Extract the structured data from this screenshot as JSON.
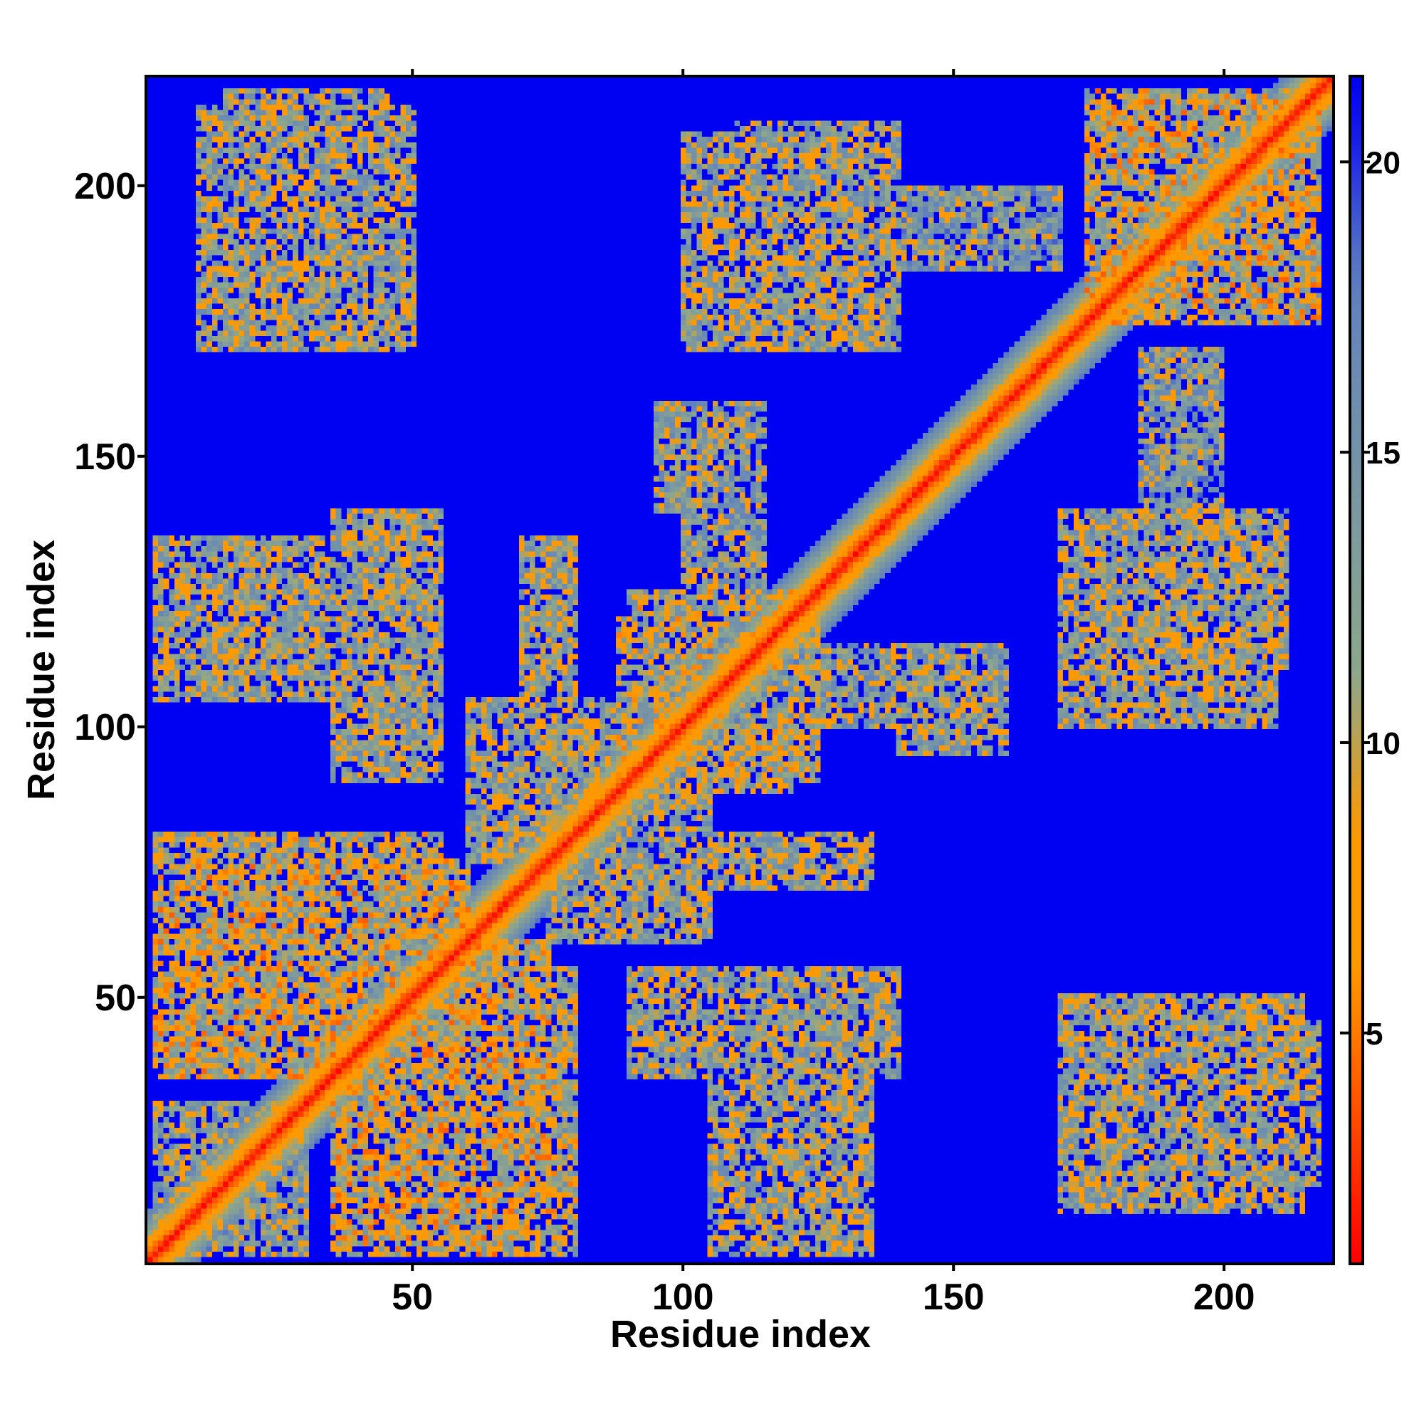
{
  "chart_data": {
    "type": "heatmap",
    "title": "",
    "xlabel": "Residue index",
    "ylabel": "Residue index",
    "xlim": [
      0.5,
      220.5
    ],
    "ylim": [
      0.5,
      220.5
    ],
    "n_residues": 220,
    "x_ticks": [
      50,
      100,
      150,
      200
    ],
    "x_tick_labels": [
      "50",
      "100",
      "150",
      "200"
    ],
    "y_ticks": [
      50,
      100,
      150,
      200
    ],
    "y_tick_labels": [
      "50",
      "100",
      "150",
      "200"
    ],
    "colorbar": {
      "range": [
        1,
        21.5
      ],
      "ticks": [
        5,
        10,
        15,
        20
      ],
      "tick_labels": [
        "5",
        "10",
        "15",
        "20"
      ],
      "colors": [
        "#ff0000",
        "#ff9900",
        "#8fa88a",
        "#0000f2"
      ]
    },
    "diagonal_distance": 1,
    "background_distance": 21.5,
    "contact_regions": [
      {
        "x": [
          15,
          45
        ],
        "y": [
          180,
          218
        ],
        "min": 6
      },
      {
        "x": [
          110,
          140
        ],
        "y": [
          170,
          212
        ],
        "min": 6
      },
      {
        "x": [
          175,
          218
        ],
        "y": [
          175,
          218
        ],
        "min": 4
      },
      {
        "x": [
          140,
          170
        ],
        "y": [
          185,
          200
        ],
        "min": 8
      },
      {
        "x": [
          2,
          50
        ],
        "y": [
          105,
          135
        ],
        "min": 6
      },
      {
        "x": [
          35,
          52
        ],
        "y": [
          95,
          140
        ],
        "min": 6
      },
      {
        "x": [
          95,
          115
        ],
        "y": [
          140,
          160
        ],
        "min": 7
      },
      {
        "x": [
          88,
          125
        ],
        "y": [
          90,
          120
        ],
        "min": 5
      },
      {
        "x": [
          125,
          160
        ],
        "y": [
          100,
          115
        ],
        "min": 7
      },
      {
        "x": [
          170,
          210
        ],
        "y": [
          100,
          135
        ],
        "min": 6
      },
      {
        "x": [
          185,
          195
        ],
        "y": [
          145,
          170
        ],
        "min": 8
      },
      {
        "x": [
          60,
          95
        ],
        "y": [
          75,
          105
        ],
        "min": 6
      },
      {
        "x": [
          85,
          135
        ],
        "y": [
          70,
          80
        ],
        "min": 6
      },
      {
        "x": [
          2,
          60
        ],
        "y": [
          35,
          75
        ],
        "min": 4
      },
      {
        "x": [
          40,
          80
        ],
        "y": [
          2,
          55
        ],
        "min": 5
      },
      {
        "x": [
          90,
          140
        ],
        "y": [
          35,
          55
        ],
        "min": 6
      },
      {
        "x": [
          110,
          135
        ],
        "y": [
          5,
          40
        ],
        "min": 6
      },
      {
        "x": [
          170,
          215
        ],
        "y": [
          10,
          50
        ],
        "min": 6
      },
      {
        "x": [
          2,
          25
        ],
        "y": [
          2,
          30
        ],
        "min": 7
      }
    ]
  }
}
